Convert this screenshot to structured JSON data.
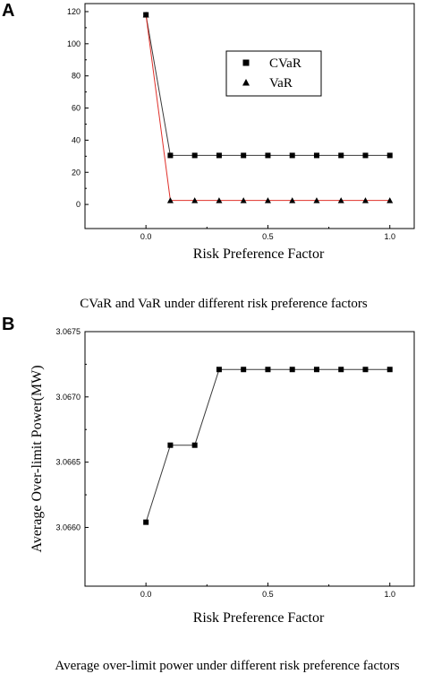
{
  "panels": [
    {
      "letter": "A",
      "caption": "CVaR and VaR under different risk preference factors"
    },
    {
      "letter": "B",
      "caption": "Average over-limit power under different risk preference factors"
    }
  ],
  "chart_data": [
    {
      "type": "line",
      "panel": "A",
      "title": "",
      "xlabel": "Risk Preference Factor",
      "ylabel": "",
      "xlim": [
        -0.25,
        1.1
      ],
      "ylim": [
        -15,
        125
      ],
      "xticks": [
        0.0,
        0.5,
        1.0
      ],
      "xtick_labels": [
        "0.0",
        "0.5",
        "1.0"
      ],
      "yticks": [
        0,
        20,
        40,
        60,
        80,
        100,
        120
      ],
      "ytick_labels": [
        "0",
        "20",
        "40",
        "60",
        "80",
        "100",
        "120"
      ],
      "grid": false,
      "legend_position": "top-right",
      "x": [
        0.0,
        0.1,
        0.2,
        0.3,
        0.4,
        0.5,
        0.6,
        0.7,
        0.8,
        0.9,
        1.0
      ],
      "series": [
        {
          "name": "CVaR",
          "marker": "square",
          "color": "#3a3a3a",
          "values": [
            118,
            30.5,
            30.5,
            30.5,
            30.5,
            30.5,
            30.5,
            30.5,
            30.5,
            30.5,
            30.5
          ]
        },
        {
          "name": "VaR",
          "marker": "triangle",
          "color": "#e0302a",
          "values": [
            118,
            2.5,
            2.5,
            2.5,
            2.5,
            2.5,
            2.5,
            2.5,
            2.5,
            2.5,
            2.5
          ]
        }
      ]
    },
    {
      "type": "line",
      "panel": "B",
      "title": "",
      "xlabel": "Risk Preference Factor",
      "ylabel": "Average Over-limit Power(MW)",
      "xlim": [
        -0.25,
        1.1
      ],
      "ylim": [
        3.06555,
        3.0675
      ],
      "xticks": [
        0.0,
        0.5,
        1.0
      ],
      "xtick_labels": [
        "0.0",
        "0.5",
        "1.0"
      ],
      "yticks": [
        3.066,
        3.0665,
        3.067,
        3.0675
      ],
      "ytick_labels": [
        "3.0660",
        "3.0665",
        "3.0670",
        "3.0675"
      ],
      "grid": false,
      "x": [
        0.0,
        0.1,
        0.2,
        0.3,
        0.4,
        0.5,
        0.6,
        0.7,
        0.8,
        0.9,
        1.0
      ],
      "series": [
        {
          "marker": "square",
          "color": "#3a3a3a",
          "values": [
            3.06604,
            3.06663,
            3.06663,
            3.06721,
            3.06721,
            3.06721,
            3.06721,
            3.06721,
            3.06721,
            3.06721,
            3.06721
          ]
        }
      ]
    }
  ]
}
